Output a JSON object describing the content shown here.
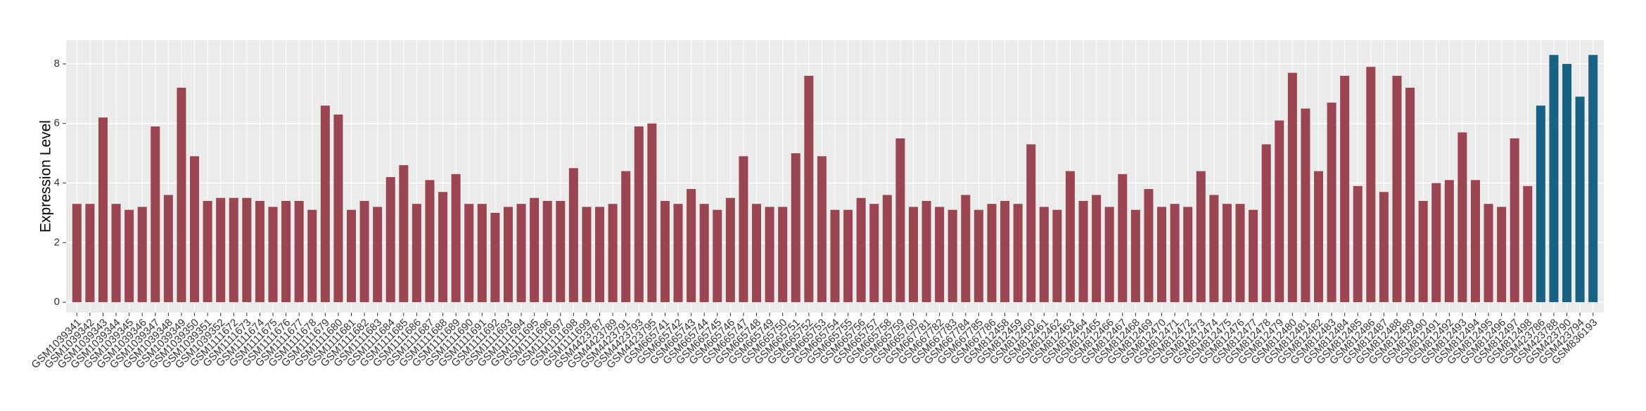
{
  "chart_data": {
    "type": "bar",
    "y_label": "Expression Level",
    "categories": [
      "GSM1039341",
      "GSM1039342",
      "GSM1039343",
      "GSM1039344",
      "GSM1039345",
      "GSM1039346",
      "GSM1039347",
      "GSM1039348",
      "GSM1039349",
      "GSM1039350",
      "GSM1039351",
      "GSM1039352",
      "GSM1111672",
      "GSM1111673",
      "GSM1111674",
      "GSM1111675",
      "GSM1111676",
      "GSM1111677",
      "GSM1111678",
      "GSM1111679",
      "GSM1111680",
      "GSM1111681",
      "GSM1111682",
      "GSM1111683",
      "GSM1111684",
      "GSM1111685",
      "GSM1111686",
      "GSM1111687",
      "GSM1111688",
      "GSM1111689",
      "GSM1111690",
      "GSM1111691",
      "GSM1111692",
      "GSM1111693",
      "GSM1111694",
      "GSM1111695",
      "GSM1111696",
      "GSM1111697",
      "GSM1111698",
      "GSM1111699",
      "GSM4423787",
      "GSM4423789",
      "GSM4423791",
      "GSM4423793",
      "GSM4423795",
      "GSM665741",
      "GSM665742",
      "GSM665743",
      "GSM665744",
      "GSM665745",
      "GSM665746",
      "GSM665747",
      "GSM665748",
      "GSM665749",
      "GSM665750",
      "GSM665751",
      "GSM665752",
      "GSM665753",
      "GSM665754",
      "GSM665755",
      "GSM665756",
      "GSM665757",
      "GSM665758",
      "GSM665759",
      "GSM665760",
      "GSM667781",
      "GSM667782",
      "GSM667783",
      "GSM667784",
      "GSM667785",
      "GSM667786",
      "GSM812458",
      "GSM812459",
      "GSM812460",
      "GSM812461",
      "GSM812462",
      "GSM812463",
      "GSM812464",
      "GSM812465",
      "GSM812466",
      "GSM812467",
      "GSM812468",
      "GSM812469",
      "GSM812470",
      "GSM812471",
      "GSM812472",
      "GSM812473",
      "GSM812474",
      "GSM812475",
      "GSM812476",
      "GSM812477",
      "GSM812478",
      "GSM812479",
      "GSM812480",
      "GSM812481",
      "GSM812482",
      "GSM812483",
      "GSM812484",
      "GSM812485",
      "GSM812486",
      "GSM812487",
      "GSM812488",
      "GSM812489",
      "GSM812490",
      "GSM812491",
      "GSM812492",
      "GSM812493",
      "GSM812494",
      "GSM812495",
      "GSM812496",
      "GSM812497",
      "GSM812498",
      "GSM423786",
      "GSM423788",
      "GSM423790",
      "GSM423794",
      "GSM836193"
    ],
    "values": [
      3.3,
      3.3,
      6.2,
      3.3,
      3.1,
      3.2,
      5.9,
      3.6,
      7.2,
      4.9,
      3.4,
      3.5,
      3.5,
      3.5,
      3.4,
      3.2,
      3.4,
      3.4,
      3.1,
      6.6,
      6.3,
      3.1,
      3.4,
      3.2,
      4.2,
      4.6,
      3.3,
      4.1,
      3.7,
      4.3,
      3.3,
      3.3,
      3.0,
      3.2,
      3.3,
      3.5,
      3.4,
      3.4,
      4.5,
      3.2,
      3.2,
      3.3,
      4.4,
      5.9,
      6.0,
      3.4,
      3.3,
      3.8,
      3.3,
      3.1,
      3.5,
      4.9,
      3.3,
      3.2,
      3.2,
      5.0,
      7.6,
      4.9,
      3.1,
      3.1,
      3.5,
      3.3,
      3.6,
      5.5,
      3.2,
      3.4,
      3.2,
      3.1,
      3.6,
      3.1,
      3.3,
      3.4,
      3.3,
      5.3,
      3.2,
      3.1,
      4.4,
      3.4,
      3.6,
      3.2,
      4.3,
      3.1,
      3.8,
      3.2,
      3.3,
      3.2,
      4.4,
      3.6,
      3.3,
      3.3,
      3.1,
      5.3,
      6.1,
      7.7,
      6.5,
      4.4,
      6.7,
      7.6,
      3.9,
      7.9,
      3.7,
      7.6,
      7.2,
      3.4,
      4.0,
      4.1,
      5.7,
      4.1,
      3.3,
      3.2,
      5.5,
      3.9,
      6.6,
      8.3,
      8.0,
      6.9,
      8.3
    ],
    "colors": [
      "#9b4452",
      "#9b4452",
      "#9b4452",
      "#9b4452",
      "#9b4452",
      "#9b4452",
      "#9b4452",
      "#9b4452",
      "#9b4452",
      "#9b4452",
      "#9b4452",
      "#9b4452",
      "#9b4452",
      "#9b4452",
      "#9b4452",
      "#9b4452",
      "#9b4452",
      "#9b4452",
      "#9b4452",
      "#9b4452",
      "#9b4452",
      "#9b4452",
      "#9b4452",
      "#9b4452",
      "#9b4452",
      "#9b4452",
      "#9b4452",
      "#9b4452",
      "#9b4452",
      "#9b4452",
      "#9b4452",
      "#9b4452",
      "#9b4452",
      "#9b4452",
      "#9b4452",
      "#9b4452",
      "#9b4452",
      "#9b4452",
      "#9b4452",
      "#9b4452",
      "#9b4452",
      "#9b4452",
      "#9b4452",
      "#9b4452",
      "#9b4452",
      "#9b4452",
      "#9b4452",
      "#9b4452",
      "#9b4452",
      "#9b4452",
      "#9b4452",
      "#9b4452",
      "#9b4452",
      "#9b4452",
      "#9b4452",
      "#9b4452",
      "#9b4452",
      "#9b4452",
      "#9b4452",
      "#9b4452",
      "#9b4452",
      "#9b4452",
      "#9b4452",
      "#9b4452",
      "#9b4452",
      "#9b4452",
      "#9b4452",
      "#9b4452",
      "#9b4452",
      "#9b4452",
      "#9b4452",
      "#9b4452",
      "#9b4452",
      "#9b4452",
      "#9b4452",
      "#9b4452",
      "#9b4452",
      "#9b4452",
      "#9b4452",
      "#9b4452",
      "#9b4452",
      "#9b4452",
      "#9b4452",
      "#9b4452",
      "#9b4452",
      "#9b4452",
      "#9b4452",
      "#9b4452",
      "#9b4452",
      "#9b4452",
      "#9b4452",
      "#9b4452",
      "#9b4452",
      "#9b4452",
      "#9b4452",
      "#9b4452",
      "#9b4452",
      "#9b4452",
      "#9b4452",
      "#9b4452",
      "#9b4452",
      "#9b4452",
      "#9b4452",
      "#9b4452",
      "#9b4452",
      "#9b4452",
      "#9b4452",
      "#9b4452",
      "#9b4452",
      "#9b4452",
      "#9b4452",
      "#9b4452",
      "#176283",
      "#176283",
      "#176283",
      "#176283",
      "#176283"
    ],
    "ylim": [
      -0.35,
      8.8
    ],
    "yticks": [
      0,
      2,
      4,
      6,
      8
    ],
    "grid": true
  }
}
